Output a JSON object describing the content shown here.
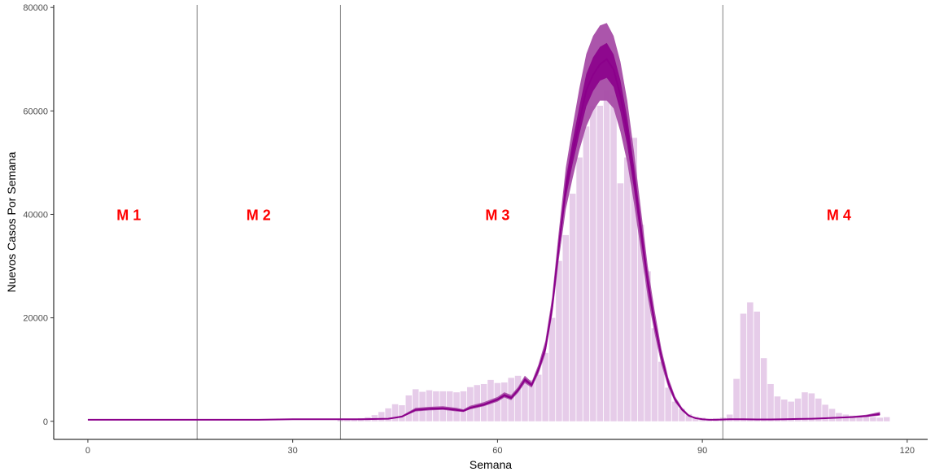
{
  "chart_data": {
    "type": "bar",
    "xlabel": "Semana",
    "ylabel": "Nuevos Casos Por Semana",
    "xlim": [
      -5,
      123
    ],
    "ylim": [
      -3500,
      80500
    ],
    "x_ticks": [
      0,
      30,
      60,
      90,
      120
    ],
    "y_ticks": [
      0,
      20000,
      40000,
      60000,
      80000
    ],
    "x_tick_labels": [
      "0",
      "30",
      "60",
      "90",
      "120"
    ],
    "y_tick_labels": [
      "0",
      "20000",
      "40000",
      "60000",
      "80000"
    ],
    "grid": false,
    "phase_boundaries": [
      16,
      37,
      93
    ],
    "phase_labels": [
      {
        "text": "M 1",
        "x": 6,
        "y": 40000
      },
      {
        "text": "M 2",
        "x": 25,
        "y": 40000
      },
      {
        "text": "M 3",
        "x": 60,
        "y": 40000
      },
      {
        "text": "M 4",
        "x": 110,
        "y": 40000
      }
    ],
    "colors": {
      "bars": "#e6cce9",
      "line": "#8b008b",
      "band_inner": "#8b008b",
      "band_outer": "#a64ca6",
      "boundary": "#808080"
    },
    "bars": {
      "x": [
        37,
        38,
        39,
        40,
        41,
        42,
        43,
        44,
        45,
        46,
        47,
        48,
        49,
        50,
        51,
        52,
        53,
        54,
        55,
        56,
        57,
        58,
        59,
        60,
        61,
        62,
        63,
        64,
        65,
        66,
        67,
        68,
        69,
        70,
        71,
        72,
        73,
        74,
        75,
        76,
        77,
        78,
        79,
        80,
        81,
        82,
        83,
        84,
        85,
        86,
        87,
        88,
        89,
        90,
        91,
        92,
        93,
        94,
        95,
        96,
        97,
        98,
        99,
        100,
        101,
        102,
        103,
        104,
        105,
        106,
        107,
        108,
        109,
        110,
        111,
        112,
        113,
        114,
        115,
        116,
        117
      ],
      "values": [
        300,
        400,
        500,
        600,
        800,
        1200,
        1800,
        2500,
        3300,
        3100,
        5000,
        6200,
        5700,
        6000,
        5800,
        5800,
        5800,
        5600,
        5800,
        6600,
        7000,
        7200,
        8000,
        7400,
        7500,
        8400,
        8800,
        7500,
        8000,
        9000,
        13200,
        20000,
        31000,
        36000,
        44000,
        51000,
        57000,
        61000,
        61000,
        64000,
        63000,
        46000,
        51000,
        54800,
        38000,
        29000,
        18000,
        11500,
        6500,
        3800,
        2400,
        1400,
        900,
        700,
        500,
        600,
        700,
        1300,
        8200,
        20800,
        23000,
        21200,
        12200,
        7200,
        4800,
        4200,
        3800,
        4400,
        5600,
        5400,
        4400,
        3200,
        2400,
        1600,
        1300,
        1100,
        1000,
        900,
        800,
        700,
        800
      ]
    },
    "model": {
      "x": [
        0,
        5,
        10,
        15,
        20,
        25,
        30,
        35,
        40,
        44,
        46,
        48,
        50,
        52,
        54,
        55,
        56,
        58,
        60,
        61,
        62,
        63,
        64,
        65,
        66,
        67,
        68,
        69,
        70,
        71,
        72,
        73,
        74,
        75,
        76,
        77,
        78,
        79,
        80,
        81,
        82,
        83,
        84,
        85,
        86,
        87,
        88,
        89,
        90,
        91,
        92,
        94,
        96,
        98,
        100,
        102,
        104,
        106,
        108,
        110,
        112,
        114,
        116
      ],
      "mean": [
        300,
        300,
        300,
        300,
        300,
        300,
        400,
        400,
        400,
        500,
        900,
        2200,
        2400,
        2500,
        2200,
        2000,
        2600,
        3200,
        4200,
        5000,
        4500,
        6000,
        8000,
        7000,
        10000,
        14000,
        22000,
        34000,
        45000,
        52000,
        58000,
        64000,
        67000,
        69000,
        70000,
        68000,
        63000,
        56000,
        47000,
        37000,
        27000,
        19000,
        12500,
        7500,
        4200,
        2300,
        1100,
        600,
        400,
        300,
        300,
        400,
        400,
        350,
        350,
        400,
        450,
        500,
        600,
        700,
        800,
        1000,
        1400
      ],
      "lower": [
        250,
        250,
        250,
        250,
        250,
        250,
        350,
        350,
        350,
        450,
        800,
        1900,
        2100,
        2200,
        1900,
        1800,
        2300,
        2900,
        3800,
        4600,
        4100,
        5500,
        7400,
        6500,
        9200,
        13000,
        20500,
        31500,
        41000,
        47000,
        52500,
        57000,
        60000,
        62000,
        62000,
        60500,
        56000,
        50000,
        42000,
        33000,
        24000,
        17000,
        11000,
        6600,
        3700,
        2000,
        900,
        500,
        350,
        250,
        250,
        350,
        350,
        300,
        300,
        350,
        400,
        450,
        500,
        600,
        700,
        850,
        1100
      ],
      "upper": [
        350,
        350,
        350,
        350,
        350,
        350,
        450,
        450,
        450,
        600,
        1100,
        2600,
        2800,
        2900,
        2600,
        2300,
        3000,
        3700,
        4700,
        5600,
        5100,
        6600,
        8800,
        7600,
        11000,
        15500,
        24000,
        37000,
        49000,
        57000,
        64500,
        71000,
        74500,
        76500,
        77000,
        74500,
        69500,
        62000,
        52000,
        41000,
        30000,
        21500,
        14000,
        8500,
        4800,
        2700,
        1300,
        700,
        450,
        350,
        350,
        450,
        450,
        400,
        400,
        450,
        500,
        600,
        700,
        850,
        1000,
        1250,
        1800
      ]
    }
  }
}
